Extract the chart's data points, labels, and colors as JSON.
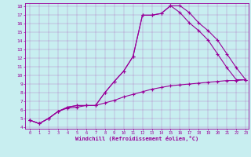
{
  "xlabel": "Windchill (Refroidissement éolien,°C)",
  "bg_color": "#c8eef0",
  "line_color": "#990099",
  "xlim_min": -0.5,
  "xlim_max": 23.3,
  "ylim_min": 3.8,
  "ylim_max": 18.4,
  "xticks": [
    0,
    1,
    2,
    3,
    4,
    5,
    6,
    7,
    8,
    9,
    10,
    11,
    12,
    13,
    14,
    15,
    16,
    17,
    18,
    19,
    20,
    21,
    22,
    23
  ],
  "yticks": [
    4,
    5,
    6,
    7,
    8,
    9,
    10,
    11,
    12,
    13,
    14,
    15,
    16,
    17,
    18
  ],
  "curve1_x": [
    0,
    1,
    2,
    3,
    4,
    5,
    6,
    7,
    8,
    9,
    10,
    11,
    12,
    13,
    14,
    15,
    16,
    17,
    18,
    19,
    20,
    21,
    22,
    23
  ],
  "curve1_y": [
    4.8,
    4.4,
    5.0,
    5.8,
    6.3,
    6.5,
    6.5,
    6.5,
    8.0,
    9.3,
    10.5,
    12.2,
    17.0,
    17.0,
    17.2,
    18.1,
    18.1,
    17.3,
    16.1,
    15.2,
    14.1,
    12.5,
    10.9,
    9.5
  ],
  "curve2_x": [
    0,
    1,
    2,
    3,
    4,
    5,
    6,
    7,
    8,
    9,
    10,
    11,
    12,
    13,
    14,
    15,
    16,
    17,
    18,
    19,
    20,
    21,
    22,
    23
  ],
  "curve2_y": [
    4.8,
    4.4,
    5.0,
    5.8,
    6.3,
    6.5,
    6.5,
    6.5,
    8.0,
    9.3,
    10.5,
    12.2,
    17.0,
    17.0,
    17.2,
    18.1,
    17.3,
    16.1,
    15.2,
    14.1,
    12.5,
    10.9,
    9.5,
    9.5
  ],
  "curve3_x": [
    0,
    1,
    2,
    3,
    4,
    5,
    6,
    7,
    8,
    9,
    10,
    11,
    12,
    13,
    14,
    15,
    16,
    17,
    18,
    19,
    20,
    21,
    22,
    23
  ],
  "curve3_y": [
    4.8,
    4.4,
    5.0,
    5.8,
    6.2,
    6.3,
    6.5,
    6.5,
    6.8,
    7.1,
    7.5,
    7.8,
    8.1,
    8.4,
    8.6,
    8.8,
    8.9,
    9.0,
    9.1,
    9.2,
    9.3,
    9.4,
    9.4,
    9.5
  ]
}
